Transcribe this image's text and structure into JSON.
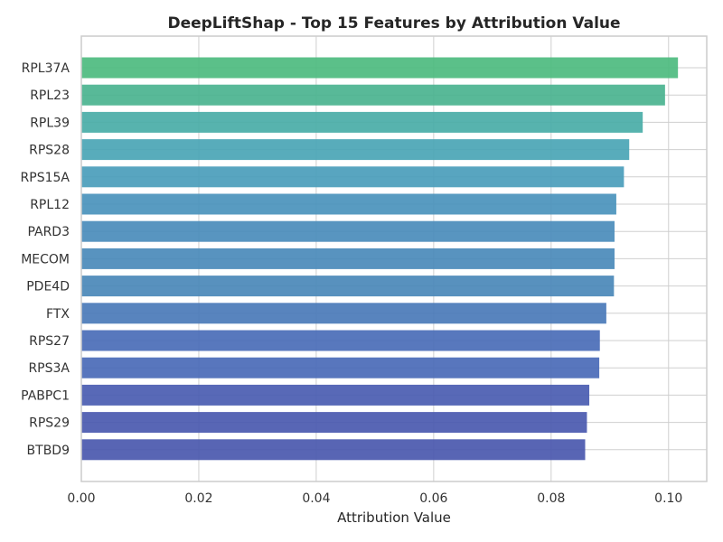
{
  "chart_data": {
    "type": "bar",
    "orientation": "horizontal",
    "title": "DeepLiftShap - Top 15 Features by Attribution Value",
    "xlabel": "Attribution Value",
    "ylabel": "",
    "xlim": [
      0.0,
      0.1065
    ],
    "xticks": [
      0.0,
      0.02,
      0.04,
      0.06,
      0.08,
      0.1
    ],
    "xtick_labels": [
      "0.00",
      "0.02",
      "0.04",
      "0.06",
      "0.08",
      "0.10"
    ],
    "grid": true,
    "categories": [
      "RPL37A",
      "RPL23",
      "RPL39",
      "RPS28",
      "RPS15A",
      "RPL12",
      "PARD3",
      "MECOM",
      "PDE4D",
      "FTX",
      "RPS27",
      "RPS3A",
      "PABPC1",
      "RPS29",
      "BTBD9"
    ],
    "values": [
      0.1016,
      0.0994,
      0.0956,
      0.0933,
      0.0924,
      0.0911,
      0.0908,
      0.0908,
      0.0907,
      0.0894,
      0.0883,
      0.0882,
      0.0865,
      0.0861,
      0.0858
    ],
    "colors": [
      "#4dbb7f",
      "#4ab38f",
      "#49ada7",
      "#4aa5b5",
      "#4a9dbb",
      "#4a93bc",
      "#4a8cbb",
      "#4a8aba",
      "#4a88b9",
      "#4a7ab9",
      "#4a6cb7",
      "#4a6ab7",
      "#4a5cb1",
      "#4a59af",
      "#4a58ae"
    ]
  }
}
